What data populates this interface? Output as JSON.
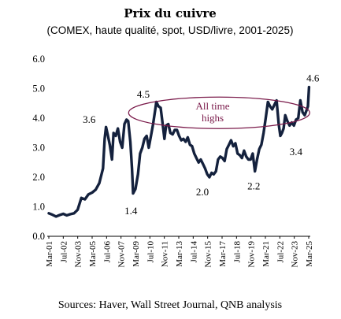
{
  "chart_data": {
    "type": "line",
    "title": "Prix du cuivre",
    "subtitle": "(COMEX, haute qualité, spot, USD/livre, 2001-2025)",
    "ylim": [
      0,
      6
    ],
    "yticks": [
      "0.0",
      "1.0",
      "2.0",
      "3.0",
      "4.0",
      "5.0",
      "6.0"
    ],
    "xtick_labels": [
      "Mar-01",
      "Jul-02",
      "Nov-03",
      "Mar-05",
      "Jul-06",
      "Nov-07",
      "Mar-09",
      "Jul-10",
      "Nov-11",
      "Mar-13",
      "Jul-14",
      "Nov-15",
      "Mar-17",
      "Jul-18",
      "Nov-19",
      "Mar-21",
      "Jul-22",
      "Nov-23",
      "Mar-25"
    ],
    "grid": false,
    "line_color": "#14213d",
    "series": [
      {
        "x": [
          2001.17,
          2001.5,
          2001.83,
          2002.17,
          2002.5,
          2002.83,
          2003.17,
          2003.5,
          2003.83,
          2004.17,
          2004.5,
          2004.83,
          2005.17,
          2005.5,
          2005.83,
          2006.17,
          2006.33,
          2006.45,
          2006.6,
          2006.8,
          2007.0,
          2007.15,
          2007.35,
          2007.55,
          2007.75,
          2007.95,
          2008.15,
          2008.35,
          2008.5,
          2008.7,
          2008.85,
          2008.95,
          2009.17,
          2009.4,
          2009.6,
          2009.8,
          2010.0,
          2010.2,
          2010.4,
          2010.6,
          2010.8,
          2011.0,
          2011.1,
          2011.3,
          2011.5,
          2011.7,
          2011.85,
          2012.0,
          2012.2,
          2012.4,
          2012.6,
          2012.8,
          2013.0,
          2013.2,
          2013.4,
          2013.6,
          2013.8,
          2014.0,
          2014.2,
          2014.4,
          2014.6,
          2014.8,
          2015.0,
          2015.2,
          2015.4,
          2015.6,
          2015.8,
          2016.0,
          2016.2,
          2016.4,
          2016.6,
          2016.8,
          2017.0,
          2017.2,
          2017.4,
          2017.6,
          2017.8,
          2018.0,
          2018.2,
          2018.4,
          2018.6,
          2018.8,
          2019.0,
          2019.2,
          2019.4,
          2019.6,
          2019.8,
          2020.0,
          2020.2,
          2020.4,
          2020.6,
          2020.8,
          2021.0,
          2021.2,
          2021.4,
          2021.6,
          2021.8,
          2022.0,
          2022.2,
          2022.4,
          2022.55,
          2022.7,
          2022.85,
          2023.0,
          2023.2,
          2023.4,
          2023.6,
          2023.8,
          2024.0,
          2024.2,
          2024.4,
          2024.6,
          2024.8,
          2025.0,
          2025.1,
          2025.2
        ],
        "y": [
          0.78,
          0.73,
          0.67,
          0.72,
          0.76,
          0.71,
          0.75,
          0.78,
          0.9,
          1.3,
          1.25,
          1.42,
          1.48,
          1.58,
          1.8,
          2.3,
          3.3,
          3.7,
          3.45,
          3.1,
          2.6,
          3.5,
          3.4,
          3.65,
          3.2,
          3.0,
          3.8,
          3.95,
          3.9,
          3.2,
          2.3,
          1.45,
          1.6,
          2.1,
          2.8,
          3.0,
          3.3,
          3.4,
          3.0,
          3.4,
          3.8,
          4.3,
          4.55,
          4.4,
          4.35,
          3.75,
          3.3,
          3.75,
          3.8,
          3.5,
          3.45,
          3.6,
          3.6,
          3.4,
          3.25,
          3.3,
          3.2,
          3.35,
          3.1,
          3.05,
          2.8,
          2.65,
          2.5,
          2.6,
          2.45,
          2.3,
          2.1,
          2.0,
          2.15,
          2.1,
          2.2,
          2.6,
          2.7,
          2.65,
          2.55,
          2.95,
          3.1,
          3.25,
          3.05,
          3.15,
          2.8,
          2.75,
          2.65,
          2.9,
          2.7,
          2.6,
          2.6,
          2.8,
          2.2,
          2.6,
          2.95,
          3.1,
          3.5,
          4.0,
          4.55,
          4.4,
          4.3,
          4.45,
          4.6,
          3.8,
          3.4,
          3.5,
          3.65,
          4.1,
          3.9,
          3.75,
          3.85,
          3.75,
          3.95,
          4.0,
          4.6,
          4.2,
          4.1,
          4.3,
          4.4,
          5.05
        ]
      }
    ],
    "annotations": [
      "3.6",
      "1.4",
      "4.5",
      "2.0",
      "2.2",
      "3.4",
      "4.6"
    ],
    "callout": {
      "lines": [
        "All time",
        "highs"
      ],
      "color": "#7a1a4a"
    },
    "source": "Sources: Haver, Wall Street Journal, QNB analysis"
  }
}
